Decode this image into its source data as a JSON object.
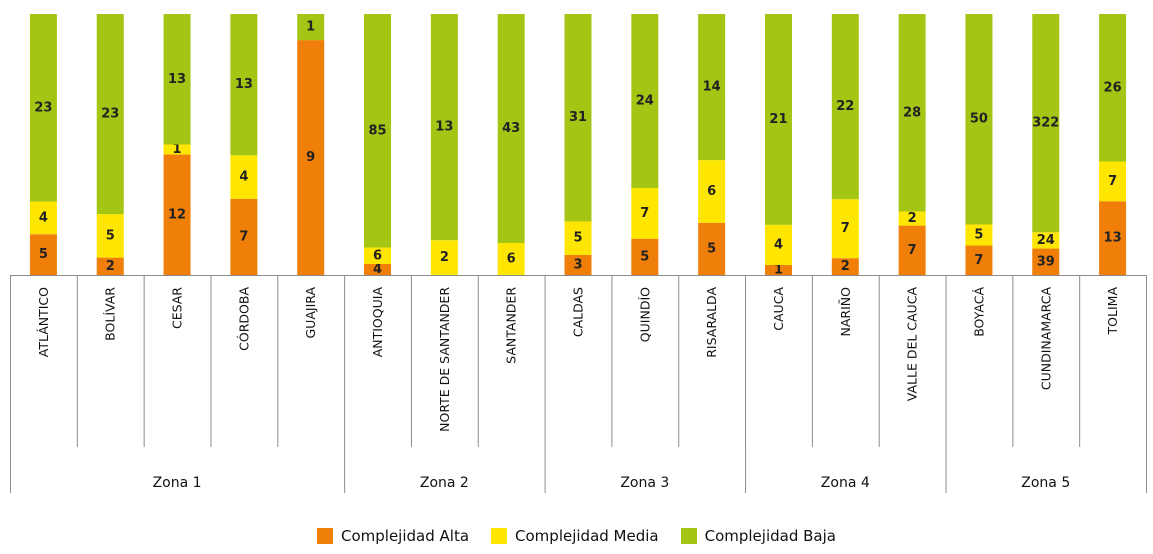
{
  "chart_data": {
    "type": "bar",
    "stacked": true,
    "normalized": true,
    "categories": [
      "ATLÁNTICO",
      "BOLÍVAR",
      "CESAR",
      "CÓRDOBA",
      "GUAJIRA",
      "ANTIOQUIA",
      "NORTE DE SANTANDER",
      "SANTANDER",
      "CALDAS",
      "QUINDÍO",
      "RISARALDA",
      "CAUCA",
      "NARIÑO",
      "VALLE DEL CAUCA",
      "BOYACÁ",
      "CUNDINAMARCA",
      "TOLIMA"
    ],
    "groups": [
      {
        "label": "Zona 1",
        "count": 5
      },
      {
        "label": "Zona 2",
        "count": 3
      },
      {
        "label": "Zona 3",
        "count": 3
      },
      {
        "label": "Zona 4",
        "count": 3
      },
      {
        "label": "Zona 5",
        "count": 3
      }
    ],
    "series": [
      {
        "name": "Complejidad Alta",
        "color": "#F07F09",
        "values": [
          5,
          2,
          12,
          7,
          9,
          4,
          0,
          0,
          3,
          5,
          5,
          1,
          2,
          7,
          7,
          39,
          13
        ]
      },
      {
        "name": "Complejidad Media",
        "color": "#FFE600",
        "values": [
          4,
          5,
          1,
          4,
          0,
          6,
          2,
          6,
          5,
          7,
          6,
          4,
          7,
          2,
          5,
          24,
          7
        ]
      },
      {
        "name": "Complejidad Baja",
        "color": "#A5C514",
        "values": [
          23,
          23,
          13,
          13,
          1,
          85,
          13,
          43,
          31,
          24,
          14,
          21,
          22,
          28,
          50,
          322,
          26
        ]
      }
    ],
    "legend_position": "bottom"
  }
}
